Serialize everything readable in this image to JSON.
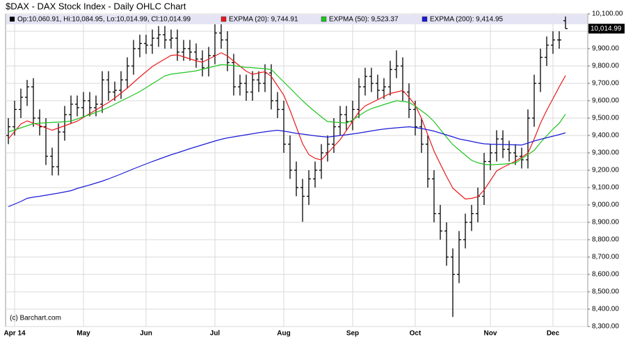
{
  "chart_data": {
    "type": "ohlc",
    "title": "$DAX - DAX Stock Index - Daily OHLC Chart",
    "ohlc_legend": "Op:10,060.91, Hi:10,084.95, Lo:10,014.99, Cl:10,014.99",
    "watermark": "(c) Barchart.com",
    "color": "#000000",
    "grid": true,
    "axis_side": "right",
    "categories": [
      null,
      "Apr 14",
      null,
      null,
      null,
      null,
      null,
      null,
      null,
      null,
      null,
      null,
      "May",
      null,
      null,
      null,
      null,
      null,
      null,
      null,
      null,
      null,
      "Jun",
      null,
      null,
      null,
      null,
      null,
      null,
      null,
      null,
      null,
      null,
      "Jul",
      null,
      null,
      null,
      null,
      null,
      null,
      null,
      null,
      null,
      null,
      "Aug",
      null,
      null,
      null,
      null,
      null,
      null,
      null,
      null,
      null,
      null,
      "Sep",
      null,
      null,
      null,
      null,
      null,
      null,
      null,
      null,
      null,
      "Oct",
      null,
      null,
      null,
      null,
      null,
      null,
      null,
      null,
      null,
      null,
      null,
      "Nov",
      null,
      null,
      null,
      null,
      null,
      null,
      null,
      null,
      null,
      "Dec",
      null,
      null
    ],
    "open": [
      9400,
      9450,
      9550,
      9620,
      9680,
      9500,
      9450,
      9280,
      9220,
      9420,
      9520,
      9580,
      9560,
      9600,
      9560,
      9580,
      9720,
      9650,
      9660,
      9720,
      9800,
      9900,
      9930,
      9920,
      9960,
      9980,
      9950,
      9960,
      9880,
      9900,
      9880,
      9840,
      9790,
      9860,
      9990,
      9950,
      9820,
      9680,
      9700,
      9650,
      9720,
      9700,
      9760,
      9600,
      9550,
      9350,
      9200,
      9100,
      9050,
      9150,
      9200,
      9300,
      9350,
      9450,
      9520,
      9480,
      9550,
      9680,
      9740,
      9700,
      9660,
      9680,
      9780,
      9800,
      9650,
      9550,
      9450,
      9350,
      9150,
      8950,
      8850,
      8700,
      8600,
      8800,
      8900,
      8950,
      9050,
      9250,
      9300,
      9380,
      9320,
      9300,
      9280,
      9260,
      9500,
      9700,
      9850,
      9920,
      9950,
      10060.91
    ],
    "high": [
      9500,
      9600,
      9670,
      9720,
      9730,
      9550,
      9500,
      9330,
      9470,
      9570,
      9630,
      9630,
      9650,
      9650,
      9630,
      9770,
      9770,
      9710,
      9770,
      9850,
      9950,
      9980,
      9980,
      10010,
      10030,
      10030,
      10010,
      10010,
      9950,
      9950,
      9930,
      9890,
      9910,
      10040,
      10040,
      10000,
      9870,
      9750,
      9750,
      9770,
      9770,
      9810,
      9810,
      9650,
      9600,
      9400,
      9250,
      9150,
      9200,
      9250,
      9350,
      9400,
      9500,
      9570,
      9570,
      9600,
      9730,
      9790,
      9790,
      9750,
      9730,
      9830,
      9890,
      9850,
      9700,
      9600,
      9500,
      9400,
      9200,
      9000,
      8900,
      8750,
      8850,
      8950,
      9000,
      9100,
      9300,
      9350,
      9430,
      9430,
      9370,
      9350,
      9330,
      9550,
      9750,
      9900,
      9970,
      10000,
      10000,
      10084.95
    ],
    "low": [
      9350,
      9400,
      9500,
      9570,
      9450,
      9400,
      9230,
      9170,
      9170,
      9370,
      9470,
      9510,
      9510,
      9510,
      9510,
      9530,
      9600,
      9600,
      9610,
      9670,
      9750,
      9850,
      9870,
      9870,
      9910,
      9900,
      9900,
      9830,
      9830,
      9830,
      9790,
      9740,
      9740,
      9810,
      9900,
      9770,
      9630,
      9630,
      9600,
      9600,
      9650,
      9650,
      9550,
      9500,
      9300,
      9150,
      9050,
      8903,
      9000,
      9100,
      9150,
      9250,
      9300,
      9400,
      9430,
      9430,
      9500,
      9630,
      9650,
      9610,
      9610,
      9630,
      9730,
      9600,
      9500,
      9400,
      9300,
      9100,
      8900,
      8800,
      8650,
      8355,
      8550,
      8750,
      8850,
      8900,
      9000,
      9200,
      9250,
      9270,
      9250,
      9230,
      9210,
      9210,
      9450,
      9650,
      9800,
      9870,
      9900,
      10014.99
    ],
    "close": [
      9450,
      9550,
      9620,
      9680,
      9500,
      9450,
      9280,
      9220,
      9420,
      9520,
      9580,
      9560,
      9600,
      9560,
      9580,
      9720,
      9650,
      9660,
      9720,
      9800,
      9900,
      9930,
      9920,
      9960,
      9980,
      9950,
      9960,
      9880,
      9900,
      9880,
      9840,
      9790,
      9860,
      9990,
      9950,
      9820,
      9680,
      9700,
      9650,
      9720,
      9700,
      9760,
      9600,
      9550,
      9350,
      9200,
      9100,
      9050,
      9150,
      9200,
      9300,
      9350,
      9450,
      9520,
      9480,
      9550,
      9680,
      9740,
      9700,
      9660,
      9680,
      9780,
      9800,
      9650,
      9550,
      9450,
      9350,
      9150,
      8950,
      8850,
      8700,
      8600,
      8800,
      8900,
      8950,
      9050,
      9250,
      9300,
      9380,
      9320,
      9300,
      9280,
      9260,
      9500,
      9700,
      9850,
      9920,
      9950,
      9950,
      10014.99
    ],
    "last_price": {
      "value": 10014.99,
      "label": "10,014.99"
    },
    "series": [
      {
        "name": "EXPMA (20): 9,744.91",
        "color": "#e8191a",
        "values": [
          9380,
          9423,
          9466,
          9484,
          9471,
          9457,
          9444,
          9430,
          9443,
          9456,
          9469,
          9482,
          9504,
          9526,
          9547,
          9569,
          9590,
          9615,
          9644,
          9673,
          9705,
          9737,
          9767,
          9797,
          9819,
          9840,
          9861,
          9864,
          9853,
          9841,
          9830,
          9822,
          9840,
          9858,
          9876,
          9858,
          9828,
          9799,
          9770,
          9752,
          9760,
          9767,
          9740,
          9686,
          9632,
          9545,
          9449,
          9353,
          9290,
          9268,
          9259,
          9298,
          9337,
          9376,
          9428,
          9482,
          9536,
          9570,
          9588,
          9606,
          9624,
          9642,
          9650,
          9659,
          9620,
          9575,
          9498,
          9404,
          9310,
          9236,
          9164,
          9097,
          9065,
          9034,
          9038,
          9047,
          9086,
          9140,
          9196,
          9216,
          9234,
          9252,
          9275,
          9298,
          9380,
          9470,
          9545,
          9612,
          9680,
          9744.91
        ]
      },
      {
        "name": "EXPMA (50): 9,523.37",
        "color": "#1fc41f",
        "values": [
          9420,
          9432,
          9444,
          9456,
          9468,
          9471,
          9473,
          9475,
          9477,
          9479,
          9483,
          9495,
          9508,
          9520,
          9533,
          9546,
          9562,
          9580,
          9598,
          9616,
          9634,
          9653,
          9675,
          9698,
          9720,
          9743,
          9753,
          9758,
          9762,
          9767,
          9772,
          9781,
          9790,
          9799,
          9808,
          9806,
          9802,
          9797,
          9792,
          9790,
          9787,
          9784,
          9780,
          9744,
          9708,
          9672,
          9636,
          9600,
          9567,
          9537,
          9507,
          9480,
          9477,
          9474,
          9471,
          9489,
          9513,
          9537,
          9555,
          9566,
          9578,
          9589,
          9600,
          9596,
          9591,
          9569,
          9542,
          9515,
          9480,
          9435,
          9390,
          9347,
          9317,
          9287,
          9257,
          9243,
          9234,
          9231,
          9233,
          9235,
          9238,
          9242,
          9266,
          9290,
          9314,
          9359,
          9398,
          9437,
          9470,
          9523.37
        ]
      },
      {
        "name": "EXPMA (200): 9,414.95",
        "color": "#1a1ad6",
        "values": [
          8990,
          9005,
          9020,
          9038,
          9045,
          9050,
          9056,
          9062,
          9068,
          9075,
          9082,
          9095,
          9105,
          9115,
          9126,
          9137,
          9150,
          9164,
          9178,
          9193,
          9208,
          9222,
          9236,
          9250,
          9263,
          9276,
          9289,
          9300,
          9312,
          9324,
          9335,
          9346,
          9357,
          9368,
          9378,
          9386,
          9392,
          9398,
          9404,
          9410,
          9416,
          9421,
          9426,
          9430,
          9425,
          9419,
          9412,
          9408,
          9403,
          9398,
          9394,
          9391,
          9395,
          9400,
          9404,
          9409,
          9414,
          9420,
          9426,
          9432,
          9437,
          9441,
          9444,
          9447,
          9450,
          9446,
          9440,
          9433,
          9425,
          9414,
          9403,
          9392,
          9380,
          9373,
          9366,
          9358,
          9352,
          9350,
          9349,
          9348,
          9347,
          9346,
          9345,
          9356,
          9368,
          9378,
          9387,
          9396,
          9405,
          9414.95
        ]
      }
    ],
    "ylim": [
      8300,
      10100
    ],
    "yticks": [
      {
        "value": 8300,
        "label": "8,300.00"
      },
      {
        "value": 8400,
        "label": "8,400.00"
      },
      {
        "value": 8500,
        "label": "8,500.00"
      },
      {
        "value": 8600,
        "label": "8,600.00"
      },
      {
        "value": 8700,
        "label": "8,700.00"
      },
      {
        "value": 8800,
        "label": "8,800.00"
      },
      {
        "value": 8900,
        "label": "8,900.00"
      },
      {
        "value": 9000,
        "label": "9,000.00"
      },
      {
        "value": 9100,
        "label": "9,100.00"
      },
      {
        "value": 9200,
        "label": "9,200.00"
      },
      {
        "value": 9300,
        "label": "9,300.00"
      },
      {
        "value": 9400,
        "label": "9,400.00"
      },
      {
        "value": 9500,
        "label": "9,500.00"
      },
      {
        "value": 9600,
        "label": "9,600.00"
      },
      {
        "value": 9700,
        "label": "9,700.00"
      },
      {
        "value": 9800,
        "label": "9,800.00"
      },
      {
        "value": 9900,
        "label": "9,900.00"
      },
      {
        "value": 10000,
        "label": "10,000.00"
      },
      {
        "value": 10100,
        "label": "10,100.00"
      }
    ]
  }
}
